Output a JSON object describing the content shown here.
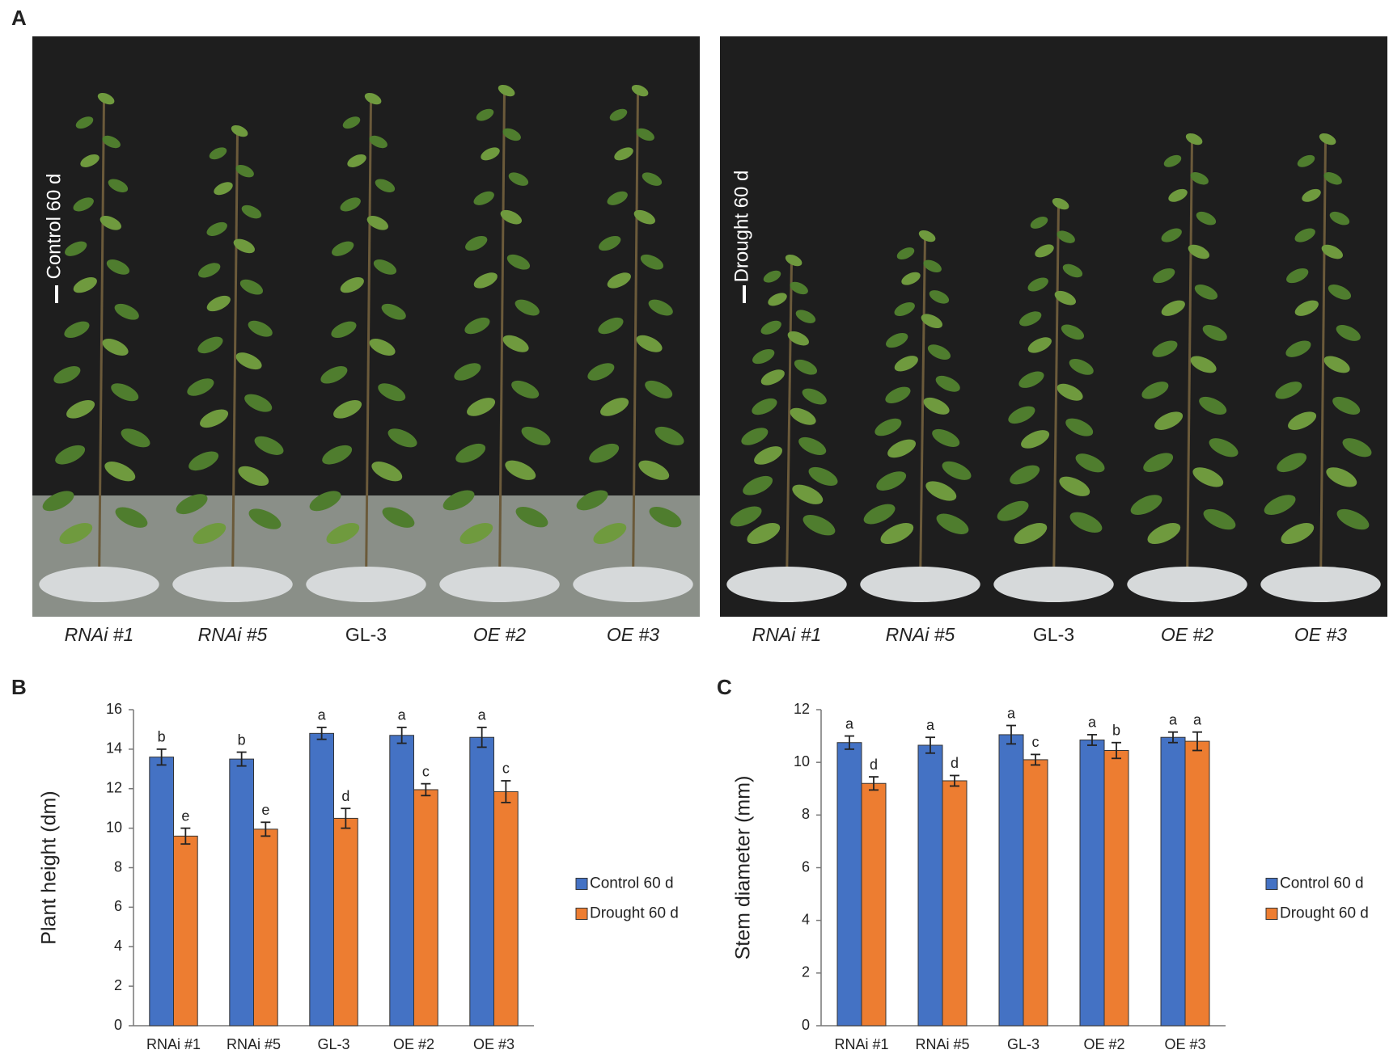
{
  "panel_labels": [
    "A",
    "B",
    "C"
  ],
  "photos": [
    {
      "label": "Control 60 d",
      "genotypes": [
        "RNAi #1",
        "RNAi #5",
        "GL-3",
        "OE #2",
        "OE #3"
      ]
    },
    {
      "label": "Drought 60 d",
      "genotypes": [
        "RNAi #1",
        "RNAi #5",
        "GL-3",
        "OE #2",
        "OE #3"
      ]
    }
  ],
  "chart_data": [
    {
      "type": "bar",
      "y_label": "Plant height (dm)",
      "categories": [
        "RNAi #1",
        "RNAi #5",
        "GL-3",
        "OE #2",
        "OE #3"
      ],
      "series": [
        {
          "name": "Control 60 d",
          "color": "#4472c4",
          "values": [
            13.6,
            13.5,
            14.8,
            14.7,
            14.6
          ],
          "errors": [
            0.4,
            0.35,
            0.3,
            0.4,
            0.5
          ],
          "letters": [
            "b",
            "b",
            "a",
            "a",
            "a"
          ]
        },
        {
          "name": "Drought 60 d",
          "color": "#ed7d31",
          "values": [
            9.6,
            9.95,
            10.5,
            11.95,
            11.85
          ],
          "errors": [
            0.4,
            0.35,
            0.5,
            0.3,
            0.55
          ],
          "letters": [
            "e",
            "e",
            "d",
            "c",
            "c"
          ]
        }
      ],
      "ylim": [
        0,
        16
      ],
      "yticks": [
        0,
        2,
        4,
        6,
        8,
        10,
        12,
        14,
        16
      ],
      "legend": "right"
    },
    {
      "type": "bar",
      "y_label": "Stem diameter (mm)",
      "categories": [
        "RNAi #1",
        "RNAi #5",
        "GL-3",
        "OE #2",
        "OE #3"
      ],
      "series": [
        {
          "name": "Control 60 d",
          "color": "#4472c4",
          "values": [
            10.75,
            10.65,
            11.05,
            10.85,
            10.95
          ],
          "errors": [
            0.25,
            0.3,
            0.35,
            0.2,
            0.2
          ],
          "letters": [
            "a",
            "a",
            "a",
            "a",
            "a"
          ]
        },
        {
          "name": "Drought 60 d",
          "color": "#ed7d31",
          "values": [
            9.2,
            9.3,
            10.1,
            10.45,
            10.8
          ],
          "errors": [
            0.25,
            0.2,
            0.2,
            0.3,
            0.35
          ],
          "letters": [
            "d",
            "d",
            "c",
            "b",
            "a"
          ]
        }
      ],
      "ylim": [
        0,
        12
      ],
      "yticks": [
        0,
        2,
        4,
        6,
        8,
        10,
        12
      ],
      "legend": "right"
    }
  ]
}
